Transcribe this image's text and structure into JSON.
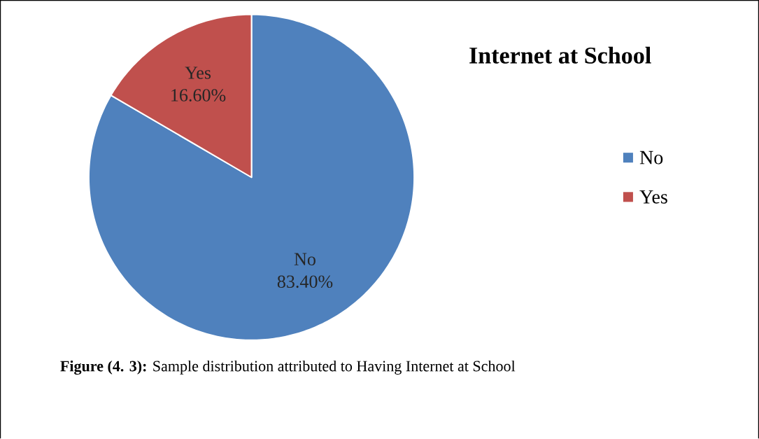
{
  "chart_data": {
    "type": "pie",
    "title": "Internet at School",
    "categories": [
      "No",
      "Yes"
    ],
    "values": [
      83.4,
      16.6
    ],
    "colors": [
      "#4f81bd",
      "#c0504d"
    ],
    "value_labels": [
      "83.40%",
      "16.60%"
    ],
    "legend": "right",
    "annotations": [
      "**Figure (4. 3):** Sample distribution attributed to Having Internet at School"
    ]
  }
}
